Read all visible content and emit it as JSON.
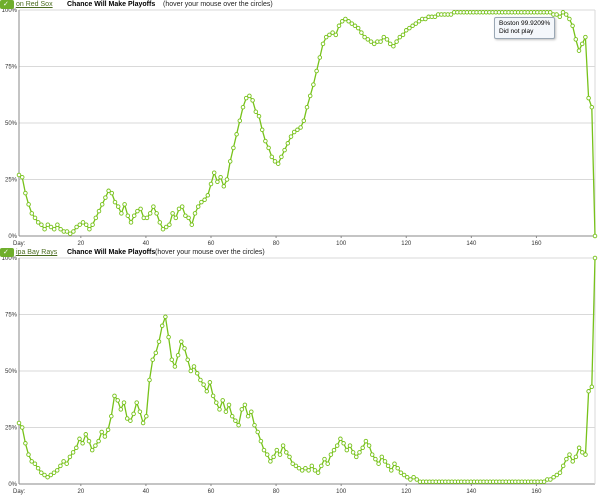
{
  "panels": [
    {
      "team_label": "on Red Sox",
      "metric_label": "Chance Will Make Playoffs",
      "hint": "(hover your mouse over the circles)",
      "tooltip": {
        "line1": "Boston 99.9209%",
        "line2": "Did not play"
      }
    },
    {
      "team_label": "ipa Bay Rays",
      "metric_label": "Chance Will Make Playoffs",
      "hint": "(hover your mouse over the circles)"
    }
  ],
  "colors": {
    "line": "#77c21a",
    "marker_fill": "#ffffff",
    "grid": "#d9d9d9",
    "axis": "#888888"
  },
  "chart_data": [
    {
      "type": "line",
      "title": "",
      "xlabel": "Day:",
      "ylabel": "",
      "xlim": [
        1,
        178
      ],
      "ylim": [
        0,
        100
      ],
      "x_ticks": [
        20,
        40,
        60,
        80,
        100,
        120,
        140,
        160
      ],
      "y_ticks": [
        "0%",
        "25%",
        "50%",
        "75%",
        "100%"
      ],
      "grid": true,
      "series": [
        {
          "values": [
            27,
            26,
            19,
            14,
            10,
            8,
            6,
            5,
            3,
            5,
            4,
            3,
            5,
            3,
            2,
            2,
            1,
            2,
            4,
            5,
            6,
            5,
            3,
            5,
            8,
            11,
            14,
            17,
            20,
            19,
            15,
            13,
            10,
            14,
            9,
            6,
            9,
            11,
            12,
            8,
            8,
            10,
            13,
            10,
            6,
            3,
            4,
            5,
            10,
            8,
            12,
            13,
            9,
            8,
            5,
            10,
            13,
            15,
            16,
            18,
            23,
            28,
            24,
            26,
            22,
            25,
            33,
            39,
            45,
            51,
            57,
            61,
            62,
            60,
            55,
            53,
            47,
            42,
            39,
            35,
            33,
            32,
            35,
            38,
            41,
            44,
            46,
            47,
            48,
            51,
            57,
            62,
            67,
            73,
            79,
            85,
            88,
            89,
            90,
            89,
            93,
            95,
            96,
            95,
            94,
            93,
            92,
            90,
            88,
            87,
            86,
            85,
            86,
            86,
            88,
            87,
            85,
            84,
            86,
            88,
            89,
            91,
            92,
            93,
            94,
            95,
            96,
            96,
            97,
            97,
            97,
            98,
            98,
            98,
            98,
            98,
            99,
            99,
            99,
            99,
            99,
            99,
            99,
            99,
            99,
            99,
            99,
            99,
            99,
            99,
            99,
            99,
            99,
            99,
            99,
            99,
            99,
            99,
            99,
            99,
            99,
            99,
            99,
            99,
            99,
            99,
            99,
            98,
            98,
            97,
            99,
            98,
            96,
            93,
            87,
            82,
            85,
            88,
            61,
            57,
            0
          ]
        }
      ]
    },
    {
      "type": "line",
      "title": "",
      "xlabel": "Day:",
      "ylabel": "",
      "xlim": [
        1,
        178
      ],
      "ylim": [
        0,
        100
      ],
      "x_ticks": [
        20,
        40,
        60,
        80,
        100,
        120,
        140,
        160
      ],
      "y_ticks": [
        "0%",
        "25%",
        "50%",
        "75%",
        "100%"
      ],
      "grid": true,
      "series": [
        {
          "values": [
            27,
            25,
            18,
            13,
            10,
            9,
            7,
            5,
            4,
            3,
            4,
            5,
            6,
            8,
            10,
            9,
            12,
            14,
            16,
            20,
            18,
            22,
            19,
            15,
            17,
            19,
            23,
            21,
            24,
            30,
            39,
            37,
            33,
            36,
            29,
            28,
            31,
            36,
            32,
            27,
            30,
            46,
            55,
            58,
            63,
            70,
            74,
            65,
            55,
            52,
            57,
            63,
            60,
            55,
            50,
            52,
            49,
            46,
            44,
            41,
            45,
            39,
            36,
            33,
            37,
            32,
            35,
            30,
            28,
            26,
            33,
            35,
            30,
            32,
            26,
            23,
            19,
            15,
            13,
            10,
            12,
            15,
            13,
            17,
            14,
            12,
            9,
            8,
            7,
            6,
            7,
            6,
            8,
            6,
            5,
            8,
            11,
            9,
            13,
            15,
            17,
            20,
            18,
            15,
            17,
            14,
            12,
            14,
            16,
            19,
            17,
            13,
            11,
            9,
            12,
            10,
            8,
            6,
            9,
            7,
            5,
            4,
            3,
            2,
            3,
            2,
            1,
            1,
            1,
            1,
            1,
            1,
            1,
            1,
            1,
            1,
            1,
            1,
            1,
            1,
            1,
            1,
            1,
            1,
            1,
            1,
            1,
            1,
            1,
            1,
            1,
            1,
            1,
            1,
            1,
            1,
            1,
            1,
            1,
            1,
            1,
            1,
            1,
            1,
            1,
            1,
            2,
            2,
            3,
            4,
            5,
            8,
            11,
            13,
            10,
            12,
            16,
            14,
            13,
            41,
            43,
            100
          ]
        }
      ]
    }
  ]
}
